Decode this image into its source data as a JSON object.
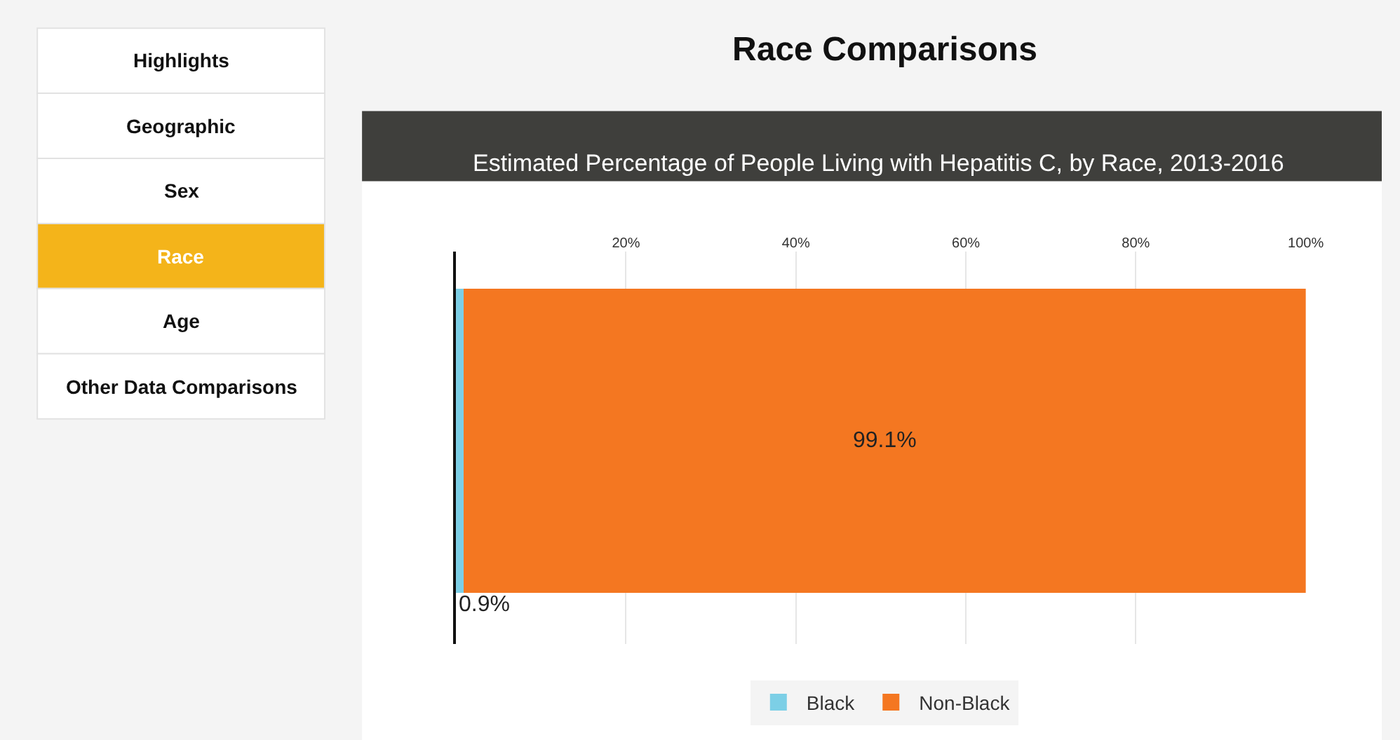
{
  "chart_data": {
    "type": "bar",
    "title": "Race Comparisons",
    "subtitle": "Estimated Percentage of People Living with Hepatitis C, by Race, 2013-2016",
    "annotations": [
      "Highlights",
      "Geographic",
      "Sex",
      "Race",
      "Age",
      "Other Data Comparisons"
    ],
    "orientation": "horizontal",
    "stacked": true,
    "categories": [
      null
    ],
    "series": [
      {
        "name": "Black",
        "color": "#7ccfe6",
        "values": [
          0.9
        ],
        "value_labels": [
          "0.9%"
        ]
      },
      {
        "name": "Non-Black",
        "color": "#f47721",
        "values": [
          99.1
        ],
        "value_labels": [
          "99.1%"
        ]
      }
    ],
    "xlim": [
      0,
      100
    ],
    "xticks": [
      {
        "value": 0,
        "label": null
      },
      {
        "value": 20,
        "label": "20%"
      },
      {
        "value": 40,
        "label": "40%"
      },
      {
        "value": 60,
        "label": "60%"
      },
      {
        "value": 80,
        "label": "80%"
      },
      {
        "value": 100,
        "label": "100%"
      }
    ],
    "grid": "x",
    "legend": "bottom"
  }
}
